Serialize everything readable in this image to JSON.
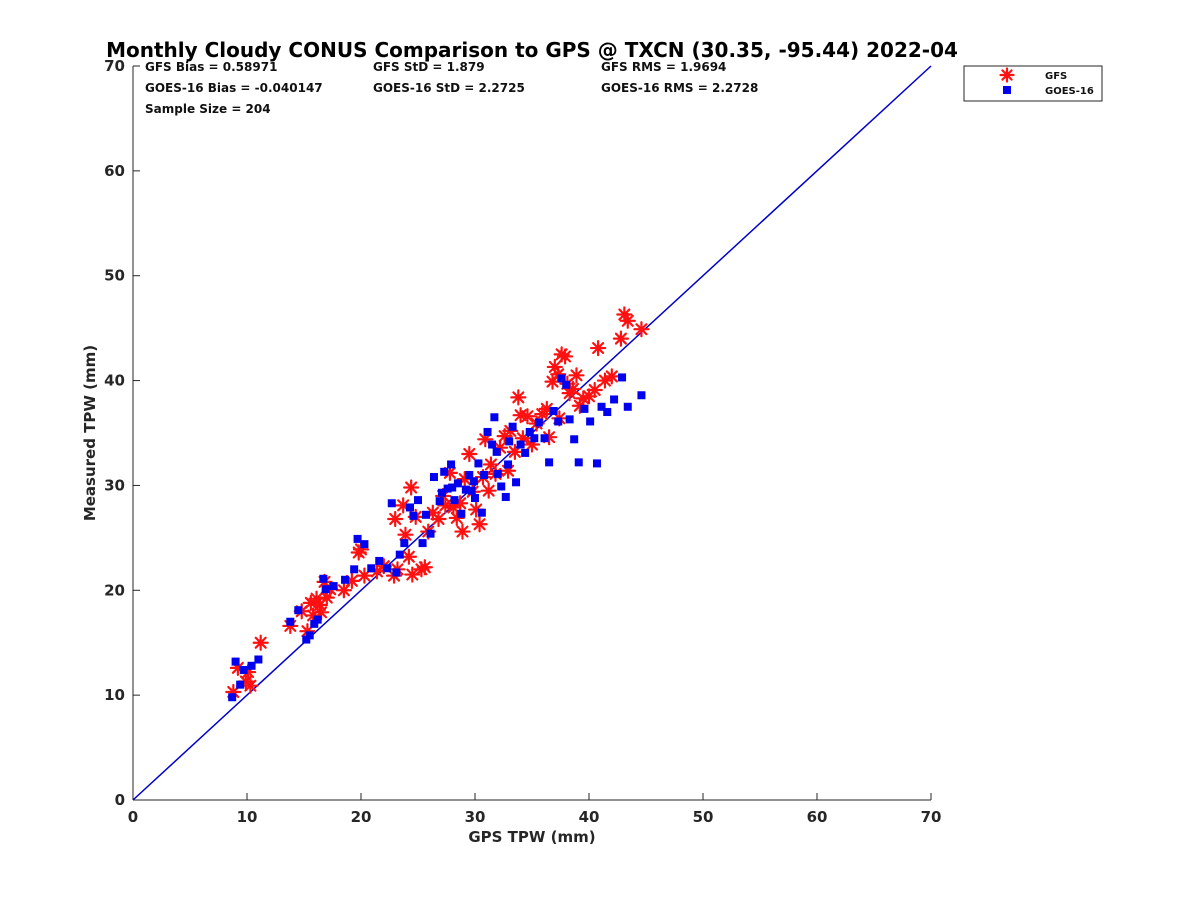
{
  "chart_data": {
    "type": "scatter",
    "title": "Monthly Cloudy CONUS Comparison to GPS @ TXCN (30.35, -95.44) 2022-04",
    "xlabel": "GPS TPW (mm)",
    "ylabel": "Measured TPW (mm)",
    "xlim": [
      0,
      70
    ],
    "ylim": [
      0,
      70
    ],
    "xticks": [
      "0",
      "10",
      "20",
      "30",
      "40",
      "50",
      "60",
      "70"
    ],
    "yticks": [
      "0",
      "10",
      "20",
      "30",
      "40",
      "50",
      "60",
      "70"
    ],
    "grid": false,
    "legend_position": "top-right",
    "stats": {
      "gfs_bias": "GFS Bias = 0.58971",
      "gfs_std": "GFS StD = 1.879",
      "gfs_rms": "GFS RMS = 1.9694",
      "goes_bias": "GOES-16 Bias = -0.040147",
      "goes_std": "GOES-16 StD = 2.2725",
      "goes_rms": "GOES-16 RMS = 2.2728",
      "sample_size": "Sample Size = 204"
    },
    "reference_line": {
      "x": [
        0,
        70
      ],
      "y": [
        0,
        70
      ],
      "color": "#0000cc"
    },
    "series": [
      {
        "name": "GFS",
        "marker": "asterisk",
        "color": "#ff1111",
        "points": [
          [
            8.8,
            10.3
          ],
          [
            9.2,
            12.6
          ],
          [
            9.9,
            11.3
          ],
          [
            10.1,
            12.2
          ],
          [
            10.3,
            10.9
          ],
          [
            11.2,
            15.0
          ],
          [
            13.8,
            16.6
          ],
          [
            14.8,
            18.0
          ],
          [
            15.3,
            16.1
          ],
          [
            15.6,
            18.8
          ],
          [
            15.8,
            17.6
          ],
          [
            16.1,
            19.2
          ],
          [
            16.4,
            18.6
          ],
          [
            16.5,
            17.9
          ],
          [
            16.8,
            20.8
          ],
          [
            17.0,
            19.3
          ],
          [
            17.3,
            20.1
          ],
          [
            18.5,
            20.0
          ],
          [
            19.2,
            20.9
          ],
          [
            19.8,
            23.6
          ],
          [
            20.0,
            23.9
          ],
          [
            20.3,
            21.4
          ],
          [
            21.4,
            21.8
          ],
          [
            22.0,
            22.3
          ],
          [
            22.9,
            21.4
          ],
          [
            23.0,
            26.8
          ],
          [
            23.2,
            22.0
          ],
          [
            23.7,
            28.1
          ],
          [
            23.9,
            25.3
          ],
          [
            24.2,
            23.2
          ],
          [
            24.4,
            29.8
          ],
          [
            24.5,
            21.5
          ],
          [
            24.8,
            27.0
          ],
          [
            25.3,
            22.0
          ],
          [
            25.6,
            22.2
          ],
          [
            25.9,
            25.6
          ],
          [
            26.3,
            27.4
          ],
          [
            26.8,
            26.8
          ],
          [
            27.2,
            29.0
          ],
          [
            27.4,
            28.1
          ],
          [
            27.8,
            31.2
          ],
          [
            28.1,
            27.9
          ],
          [
            28.4,
            26.9
          ],
          [
            28.7,
            28.3
          ],
          [
            28.9,
            25.6
          ],
          [
            29.1,
            30.6
          ],
          [
            29.5,
            33.0
          ],
          [
            29.8,
            29.4
          ],
          [
            30.1,
            27.7
          ],
          [
            30.4,
            26.3
          ],
          [
            30.7,
            30.8
          ],
          [
            30.9,
            34.4
          ],
          [
            31.2,
            29.5
          ],
          [
            31.4,
            32.0
          ],
          [
            31.8,
            31.1
          ],
          [
            32.2,
            33.6
          ],
          [
            32.6,
            34.7
          ],
          [
            32.9,
            31.4
          ],
          [
            33.1,
            35.2
          ],
          [
            33.5,
            33.2
          ],
          [
            33.8,
            38.4
          ],
          [
            34.0,
            36.7
          ],
          [
            34.2,
            34.5
          ],
          [
            34.6,
            36.6
          ],
          [
            35.0,
            33.9
          ],
          [
            35.4,
            35.9
          ],
          [
            35.9,
            36.8
          ],
          [
            36.3,
            37.3
          ],
          [
            36.8,
            39.9
          ],
          [
            37.0,
            41.3
          ],
          [
            37.3,
            40.6
          ],
          [
            37.6,
            42.5
          ],
          [
            37.9,
            42.3
          ],
          [
            38.1,
            39.7
          ],
          [
            38.3,
            38.8
          ],
          [
            38.6,
            39.2
          ],
          [
            38.9,
            40.5
          ],
          [
            39.2,
            37.6
          ],
          [
            39.5,
            38.3
          ],
          [
            40.0,
            38.5
          ],
          [
            40.5,
            39.1
          ],
          [
            40.8,
            43.1
          ],
          [
            41.4,
            40.0
          ],
          [
            42.0,
            40.4
          ],
          [
            42.8,
            44.0
          ],
          [
            43.1,
            46.3
          ],
          [
            43.4,
            45.7
          ],
          [
            44.6,
            44.9
          ],
          [
            36.5,
            34.6
          ],
          [
            37.4,
            36.4
          ]
        ]
      },
      {
        "name": "GOES-16",
        "marker": "square",
        "color": "#0000ee",
        "points": [
          [
            8.7,
            9.8
          ],
          [
            9.0,
            13.2
          ],
          [
            9.4,
            11.0
          ],
          [
            9.7,
            12.4
          ],
          [
            10.4,
            12.8
          ],
          [
            11.0,
            13.4
          ],
          [
            13.8,
            17.0
          ],
          [
            14.5,
            18.1
          ],
          [
            15.2,
            15.3
          ],
          [
            15.5,
            15.7
          ],
          [
            15.9,
            16.8
          ],
          [
            16.2,
            17.2
          ],
          [
            16.7,
            21.1
          ],
          [
            16.9,
            20.1
          ],
          [
            17.6,
            20.4
          ],
          [
            18.6,
            21.0
          ],
          [
            19.4,
            22.0
          ],
          [
            19.7,
            24.9
          ],
          [
            20.3,
            24.4
          ],
          [
            20.9,
            22.1
          ],
          [
            21.6,
            22.8
          ],
          [
            22.3,
            22.1
          ],
          [
            22.7,
            28.3
          ],
          [
            23.1,
            21.7
          ],
          [
            23.4,
            23.4
          ],
          [
            23.8,
            24.5
          ],
          [
            24.3,
            27.9
          ],
          [
            24.6,
            27.1
          ],
          [
            25.0,
            28.6
          ],
          [
            25.4,
            24.5
          ],
          [
            25.7,
            27.2
          ],
          [
            26.1,
            25.4
          ],
          [
            26.4,
            30.8
          ],
          [
            26.9,
            28.5
          ],
          [
            27.3,
            31.3
          ],
          [
            27.6,
            29.7
          ],
          [
            27.9,
            32.0
          ],
          [
            28.2,
            28.6
          ],
          [
            28.5,
            30.2
          ],
          [
            28.8,
            27.3
          ],
          [
            29.2,
            29.6
          ],
          [
            29.5,
            31.0
          ],
          [
            29.9,
            30.4
          ],
          [
            30.3,
            32.1
          ],
          [
            30.6,
            27.4
          ],
          [
            30.8,
            31.0
          ],
          [
            31.1,
            35.1
          ],
          [
            31.5,
            33.9
          ],
          [
            31.7,
            36.5
          ],
          [
            32.0,
            31.1
          ],
          [
            32.3,
            29.9
          ],
          [
            32.7,
            28.9
          ],
          [
            32.9,
            32.0
          ],
          [
            33.3,
            35.6
          ],
          [
            33.6,
            30.3
          ],
          [
            34.0,
            33.9
          ],
          [
            34.4,
            33.1
          ],
          [
            34.8,
            35.1
          ],
          [
            35.2,
            34.5
          ],
          [
            35.6,
            36.0
          ],
          [
            36.1,
            34.5
          ],
          [
            36.5,
            32.2
          ],
          [
            36.9,
            37.1
          ],
          [
            37.3,
            36.1
          ],
          [
            37.6,
            40.2
          ],
          [
            38.0,
            39.6
          ],
          [
            38.3,
            36.3
          ],
          [
            38.7,
            34.4
          ],
          [
            39.1,
            32.2
          ],
          [
            39.6,
            37.3
          ],
          [
            40.1,
            36.1
          ],
          [
            40.7,
            32.1
          ],
          [
            41.1,
            37.5
          ],
          [
            41.6,
            37.0
          ],
          [
            42.2,
            38.2
          ],
          [
            42.9,
            40.3
          ],
          [
            43.4,
            37.5
          ],
          [
            44.6,
            38.6
          ],
          [
            33.0,
            34.2
          ],
          [
            31.9,
            33.2
          ],
          [
            29.7,
            29.5
          ],
          [
            28.0,
            29.8
          ],
          [
            30.0,
            28.8
          ],
          [
            27.1,
            29.3
          ]
        ]
      }
    ]
  }
}
